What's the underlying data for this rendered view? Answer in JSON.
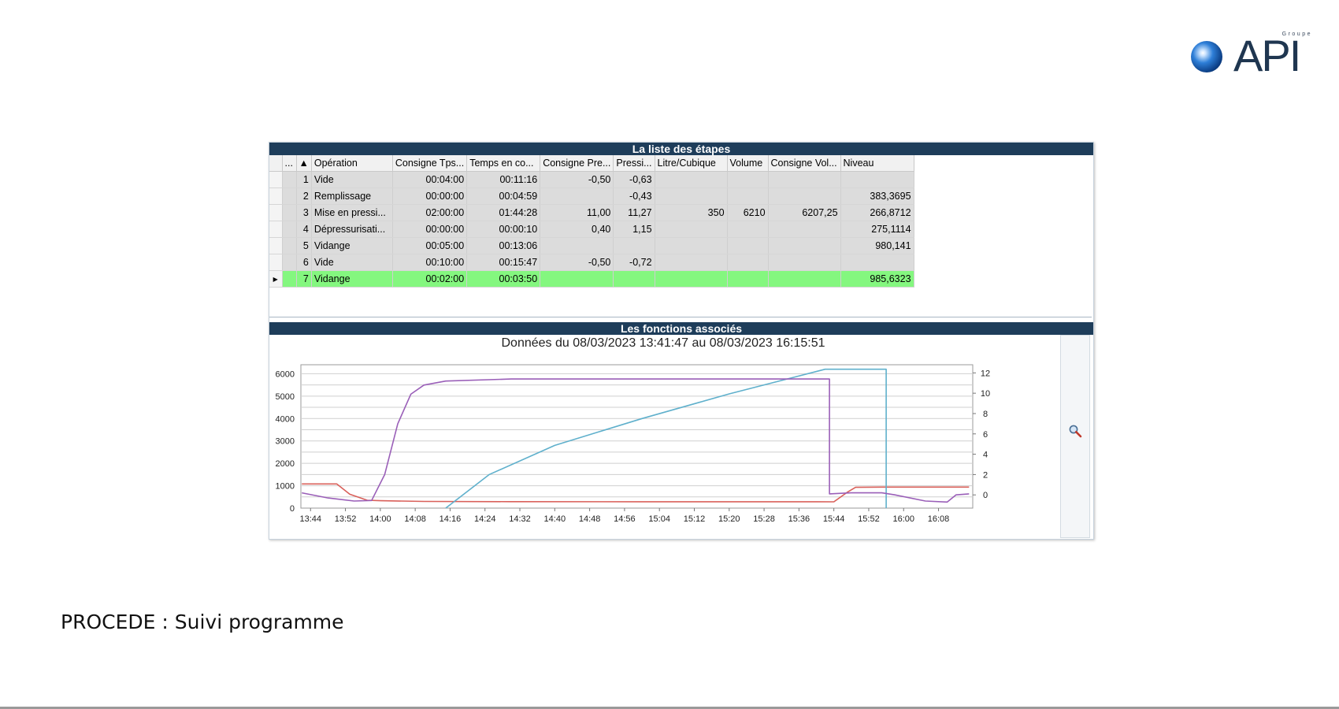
{
  "logo": {
    "group": "Groupe",
    "text": "API"
  },
  "grid": {
    "title": "La liste des étapes",
    "columns": [
      "...",
      "▲",
      "Opération",
      "Consigne Tps...",
      "Temps en co...",
      "Consigne Pre...",
      "Pressi...",
      "Litre/Cubique",
      "Volume",
      "Consigne Vol...",
      "Niveau"
    ],
    "rows": [
      {
        "marker": "",
        "num": "1",
        "operation": "Vide",
        "consigne_tps": "00:04:00",
        "temps": "00:11:16",
        "consigne_pre": "-0,50",
        "pression": "-0,63",
        "litre": "",
        "volume": "",
        "consigne_vol": "",
        "niveau": ""
      },
      {
        "marker": "",
        "num": "2",
        "operation": "Remplissage",
        "consigne_tps": "00:00:00",
        "temps": "00:04:59",
        "consigne_pre": "",
        "pression": "-0,43",
        "litre": "",
        "volume": "",
        "consigne_vol": "",
        "niveau": "383,3695"
      },
      {
        "marker": "",
        "num": "3",
        "operation": "Mise en pressi...",
        "consigne_tps": "02:00:00",
        "temps": "01:44:28",
        "consigne_pre": "11,00",
        "pression": "11,27",
        "litre": "350",
        "volume": "6210",
        "consigne_vol": "6207,25",
        "niveau": "266,8712"
      },
      {
        "marker": "",
        "num": "4",
        "operation": "Dépressurisati...",
        "consigne_tps": "00:00:00",
        "temps": "00:00:10",
        "consigne_pre": "0,40",
        "pression": "1,15",
        "litre": "",
        "volume": "",
        "consigne_vol": "",
        "niveau": "275,1114"
      },
      {
        "marker": "",
        "num": "5",
        "operation": "Vidange",
        "consigne_tps": "00:05:00",
        "temps": "00:13:06",
        "consigne_pre": "",
        "pression": "",
        "litre": "",
        "volume": "",
        "consigne_vol": "",
        "niveau": "980,141"
      },
      {
        "marker": "",
        "num": "6",
        "operation": "Vide",
        "consigne_tps": "00:10:00",
        "temps": "00:15:47",
        "consigne_pre": "-0,50",
        "pression": "-0,72",
        "litre": "",
        "volume": "",
        "consigne_vol": "",
        "niveau": ""
      },
      {
        "marker": "▶",
        "num": "7",
        "operation": "Vidange",
        "consigne_tps": "00:02:00",
        "temps": "00:03:50",
        "consigne_pre": "",
        "pression": "",
        "litre": "",
        "volume": "",
        "consigne_vol": "",
        "niveau": "985,6323"
      }
    ],
    "active_row": 6,
    "active_color": "#84f77f"
  },
  "functions": {
    "title": "Les fonctions associés"
  },
  "chart_data": {
    "type": "line",
    "title": "Données du 08/03/2023 13:41:47 au 08/03/2023 16:15:51",
    "x_ticks": [
      "13:44",
      "13:52",
      "14:00",
      "14:08",
      "14:16",
      "14:24",
      "14:32",
      "14:40",
      "14:48",
      "14:56",
      "15:04",
      "15:12",
      "15:20",
      "15:28",
      "15:36",
      "15:44",
      "15:52",
      "16:00",
      "16:08"
    ],
    "xlim": [
      "13:41:47",
      "16:15:51"
    ],
    "y_left": {
      "ticks": [
        0,
        1000,
        2000,
        3000,
        4000,
        5000,
        6000
      ],
      "ylim": [
        0,
        6400
      ]
    },
    "y_right": {
      "ticks": [
        0,
        2,
        4,
        6,
        8,
        10,
        12
      ],
      "ylim": [
        -1.3,
        12.8
      ]
    },
    "grid": true,
    "series": [
      {
        "color": "#d9605a",
        "axis": "left",
        "points": [
          [
            "13:42",
            1080
          ],
          [
            "13:50",
            1080
          ],
          [
            "13:53",
            620
          ],
          [
            "13:57",
            350
          ],
          [
            "14:00",
            330
          ],
          [
            "14:10",
            300
          ],
          [
            "14:30",
            290
          ],
          [
            "15:00",
            285
          ],
          [
            "15:30",
            285
          ],
          [
            "15:40",
            285
          ],
          [
            "15:44",
            280
          ],
          [
            "15:47",
            700
          ],
          [
            "15:49",
            930
          ],
          [
            "15:55",
            940
          ],
          [
            "16:05",
            940
          ],
          [
            "16:15",
            940
          ]
        ]
      },
      {
        "color": "#5fb0cc",
        "axis": "left",
        "points": [
          [
            "14:15",
            0
          ],
          [
            "14:25",
            1500
          ],
          [
            "14:40",
            2800
          ],
          [
            "15:00",
            4000
          ],
          [
            "15:20",
            5100
          ],
          [
            "15:42",
            6200
          ],
          [
            "15:56",
            6200
          ],
          [
            "15:56",
            0
          ]
        ]
      },
      {
        "color": "#9a5fb8",
        "axis": "right",
        "points": [
          [
            "13:42",
            0.2
          ],
          [
            "13:48",
            -0.3
          ],
          [
            "13:54",
            -0.6
          ],
          [
            "13:58",
            -0.55
          ],
          [
            "14:01",
            2
          ],
          [
            "14:04",
            7
          ],
          [
            "14:07",
            9.9
          ],
          [
            "14:10",
            10.8
          ],
          [
            "14:15",
            11.2
          ],
          [
            "14:30",
            11.4
          ],
          [
            "15:00",
            11.4
          ],
          [
            "15:43",
            11.4
          ],
          [
            "15:43",
            0.1
          ],
          [
            "15:48",
            0.2
          ],
          [
            "15:55",
            0.2
          ],
          [
            "15:58",
            0
          ],
          [
            "16:05",
            -0.6
          ],
          [
            "16:10",
            -0.7
          ],
          [
            "16:12",
            0
          ],
          [
            "16:15",
            0.1
          ]
        ]
      }
    ]
  },
  "caption": "PROCEDE : Suivi programme",
  "icons": {
    "zoom": "magnifier-icon",
    "row_pointer": "row-pointer-icon"
  }
}
